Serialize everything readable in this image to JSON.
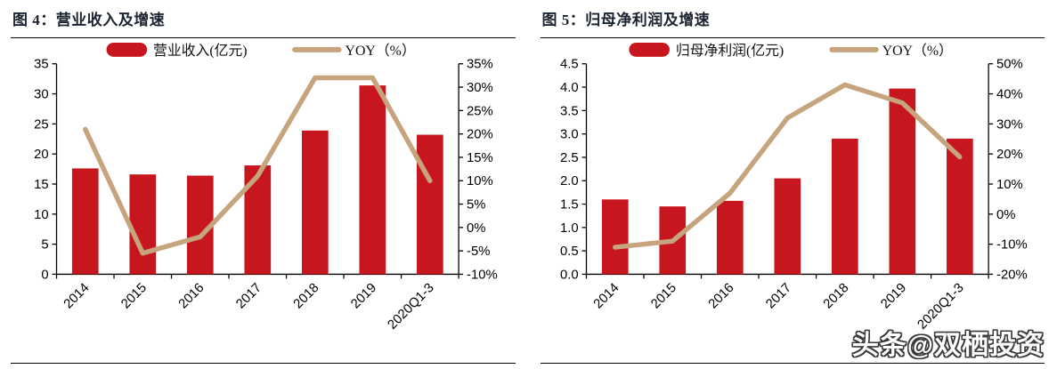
{
  "watermark": "头条@双栖投资",
  "colors": {
    "bar": "#C8161E",
    "line": "#C5A47E",
    "axis": "#000000",
    "title": "#1B2430"
  },
  "chart_data": [
    {
      "type": "bar",
      "subtype": "combo-bar-line",
      "title": "图 4：营业收入及增速",
      "categories": [
        "2014",
        "2015",
        "2016",
        "2017",
        "2018",
        "2019",
        "2020Q1-3"
      ],
      "series": [
        {
          "name": "营业收入(亿元)",
          "type": "bar",
          "axis": "primary",
          "values": [
            17.6,
            16.6,
            16.4,
            18.1,
            23.9,
            31.4,
            23.2
          ]
        },
        {
          "name": "YOY（%）",
          "type": "line",
          "axis": "secondary",
          "values": [
            21,
            -5.5,
            -2,
            11,
            32,
            32,
            10
          ]
        }
      ],
      "y1": {
        "min": 0,
        "max": 35,
        "step": 5,
        "decimals": 0,
        "suffix": ""
      },
      "y2": {
        "min": -10,
        "max": 35,
        "step": 5,
        "decimals": 0,
        "suffix": "%"
      },
      "legend_position": "top",
      "grid": false
    },
    {
      "type": "bar",
      "subtype": "combo-bar-line",
      "title": "图 5：归母净利润及增速",
      "categories": [
        "2014",
        "2015",
        "2016",
        "2017",
        "2018",
        "2019",
        "2020Q1-3"
      ],
      "series": [
        {
          "name": "归母净利润(亿元)",
          "type": "bar",
          "axis": "primary",
          "values": [
            1.6,
            1.45,
            1.57,
            2.05,
            2.9,
            3.97,
            2.9
          ]
        },
        {
          "name": "YOY（%）",
          "type": "line",
          "axis": "secondary",
          "values": [
            -11,
            -9,
            7,
            32,
            43,
            37,
            19
          ]
        }
      ],
      "y1": {
        "min": 0,
        "max": 4.5,
        "step": 0.5,
        "decimals": 1,
        "suffix": ""
      },
      "y2": {
        "min": -20,
        "max": 50,
        "step": 10,
        "decimals": 0,
        "suffix": "%"
      },
      "legend_position": "top",
      "grid": false
    }
  ]
}
